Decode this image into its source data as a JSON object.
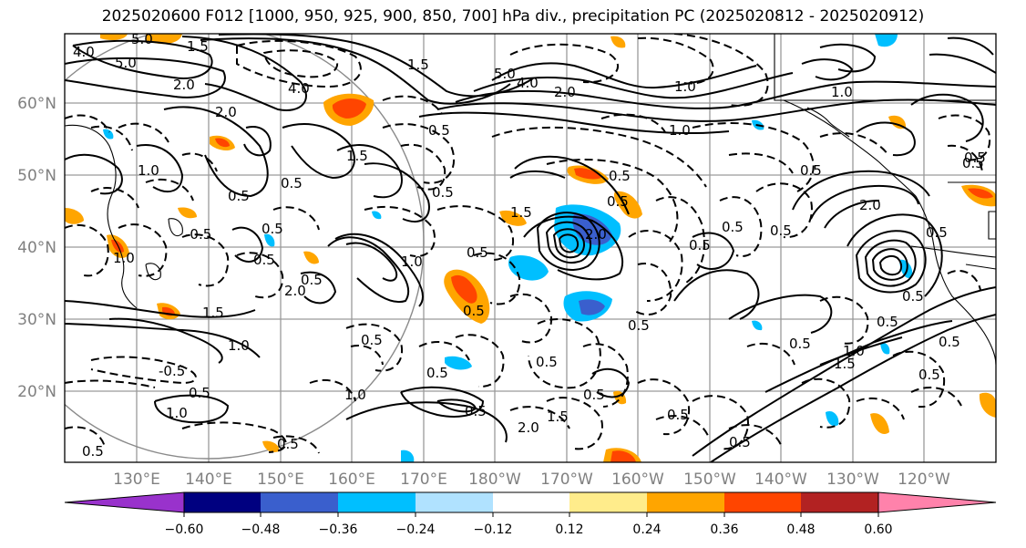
{
  "title": "2025020600 F012 [1000, 950, 925, 900, 850, 700] hPa div., precipitation PC (2025020812 - 2025020912)",
  "map": {
    "lat_labels": [
      "60°N",
      "50°N",
      "40°N",
      "30°N",
      "20°N"
    ],
    "lon_labels": [
      "130°E",
      "140°E",
      "150°E",
      "160°E",
      "170°E",
      "180°W",
      "170°W",
      "160°W",
      "150°W",
      "140°W",
      "130°W",
      "120°W"
    ],
    "gridlines": true,
    "contour_labels": [
      "4.0",
      "5.0",
      "5.0",
      "2.0",
      "1.5",
      "4.0",
      "5.0",
      "4.0",
      "2.0",
      "1.0",
      "2.0",
      "1.0",
      "0.5",
      "1.5",
      "1.0",
      "1.0",
      "0.5",
      "0.5",
      "0.5",
      "1.5",
      "0.5",
      "0.5",
      "0.5",
      "0.5",
      "2.0",
      "1.5",
      "0.5",
      "0.5",
      "1.0",
      "-0.5",
      "2.0",
      "0.5",
      "0.5",
      "1.0",
      "0.5",
      "2.0",
      "0.5",
      "0.5",
      "0.5",
      "1.5",
      "1.0",
      "0.5",
      "0.5",
      "0.5",
      "0.5",
      "0.5",
      "1.5",
      "-0.5",
      "0.5",
      "1.0",
      "0.5",
      "0.5",
      "1.0",
      "2.0",
      "0.5",
      "0.5",
      "1.0",
      "1.5",
      "0.5",
      "0.5",
      "0.5",
      "0.5",
      "0.5",
      "0.5",
      "0.5",
      "0.5"
    ]
  },
  "colorbar": {
    "tick_labels": [
      "−0.60",
      "−0.48",
      "−0.36",
      "−0.24",
      "−0.12",
      "0.12",
      "0.24",
      "0.36",
      "0.48",
      "0.60"
    ],
    "colors": [
      "#9932cc",
      "#000080",
      "#3a5fcd",
      "#00bfff",
      "#b0e2ff",
      "#ffffff",
      "#ffec8b",
      "#ffa500",
      "#ff4500",
      "#b22222",
      "#ff82ab"
    ]
  },
  "colors": {
    "strong_positive": "#ff4500",
    "positive": "#ffa500",
    "weak_positive": "#ffec8b",
    "negative": "#00bfff",
    "strong_negative": "#3a5fcd",
    "gridline": "#808080",
    "contour": "#000000"
  }
}
